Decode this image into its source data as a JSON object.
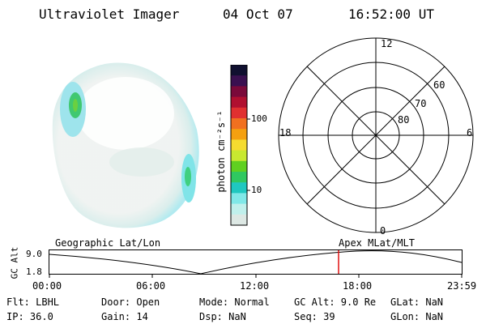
{
  "header": {
    "title": "Ultraviolet Imager",
    "date": "04 Oct 07",
    "time": "16:52:00 UT"
  },
  "colorbar": {
    "label": "photon cm⁻²s⁻¹",
    "ticks": [
      "100",
      "10"
    ],
    "colors": [
      "#101030",
      "#3a1050",
      "#7a0a3a",
      "#b01030",
      "#e03030",
      "#f07020",
      "#f4a010",
      "#f5dc30",
      "#c8e830",
      "#60d020",
      "#30c860",
      "#20c8c0",
      "#80e8e8",
      "#c0f0ec",
      "#dde8e4"
    ]
  },
  "polar_plot": {
    "mlt_labels": [
      "12",
      "18",
      "6",
      "0"
    ],
    "lat_labels": [
      "60",
      "70",
      "80"
    ]
  },
  "timeline": {
    "left_label": "Geographic Lat/Lon",
    "right_label": "Apex MLat/MLT",
    "yaxis_label": "GC Alt",
    "y_ticks": [
      "9.0",
      "1.8"
    ],
    "x_ticks": [
      "00:00",
      "06:00",
      "12:00",
      "18:00",
      "23:59"
    ],
    "marker_color": "#e01010"
  },
  "info": {
    "flt": "Flt: LBHL",
    "ip": "IP: 36.0",
    "door": "Door: Open",
    "gain": "Gain: 14",
    "mode": "Mode: Normal",
    "dsp": "Dsp:     NaN",
    "gcalt": "GC Alt: 9.0 Re",
    "seq": "Seq: 39",
    "glat": "GLat:    NaN",
    "glon": "GLon:    NaN"
  }
}
